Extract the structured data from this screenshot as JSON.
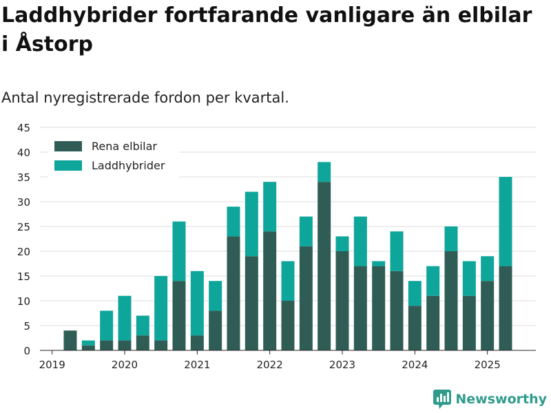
{
  "header": {
    "title": "Laddhybrider fortfarande vanligare än elbilar i Åstorp",
    "subtitle": "Antal nyregistrerade fordon per kvartal."
  },
  "brand": {
    "name": "Newsworthy",
    "icon": "bar-chart-logo-icon",
    "color": "#2f9b8c"
  },
  "chart_data": {
    "type": "bar",
    "stacked": true,
    "title": "",
    "xlabel": "",
    "ylabel": "",
    "ylim": [
      0,
      45
    ],
    "yticks": [
      0,
      5,
      10,
      15,
      20,
      25,
      30,
      35,
      40,
      45
    ],
    "grid": true,
    "legend_position": "top-left",
    "xtick_labels": [
      "2019",
      "2020",
      "2021",
      "2022",
      "2023",
      "2024",
      "2025"
    ],
    "categories": [
      "2019 Q2",
      "2019 Q3",
      "2019 Q4",
      "2020 Q1",
      "2020 Q2",
      "2020 Q3",
      "2020 Q4",
      "2021 Q1",
      "2021 Q2",
      "2021 Q3",
      "2021 Q4",
      "2022 Q1",
      "2022 Q2",
      "2022 Q3",
      "2022 Q4",
      "2023 Q1",
      "2023 Q2",
      "2023 Q3",
      "2023 Q4",
      "2024 Q1",
      "2024 Q2",
      "2024 Q3",
      "2024 Q4",
      "2025 Q1",
      "2025 Q2"
    ],
    "series": [
      {
        "name": "Rena elbilar",
        "color": "#2f5d55",
        "values": [
          4,
          1,
          2,
          2,
          3,
          2,
          14,
          3,
          8,
          23,
          19,
          24,
          10,
          21,
          34,
          20,
          17,
          17,
          16,
          9,
          11,
          20,
          11,
          14,
          17
        ]
      },
      {
        "name": "Laddhybrider",
        "color": "#0ea59a",
        "values": [
          0,
          1,
          6,
          9,
          4,
          13,
          12,
          13,
          6,
          6,
          13,
          10,
          8,
          6,
          4,
          3,
          10,
          1,
          8,
          5,
          6,
          5,
          7,
          5,
          18
        ]
      }
    ]
  }
}
